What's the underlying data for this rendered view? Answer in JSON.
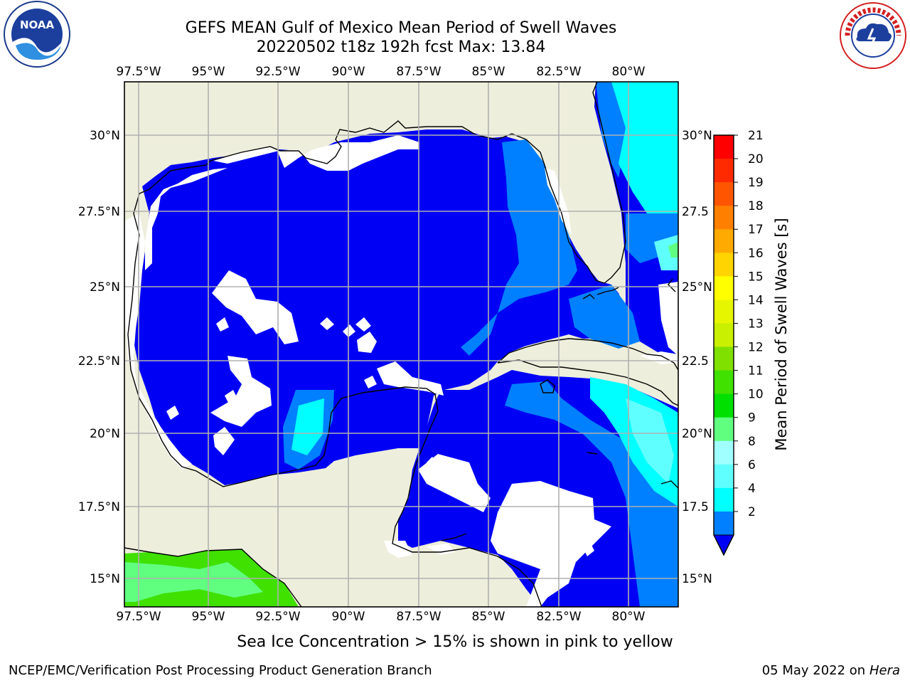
{
  "header": {
    "title_line1": "GEFS MEAN Gulf of Mexico Mean Period of Swell Waves",
    "title_line2": "20220502 t18z 192h fcst   Max: 13.84"
  },
  "logos": {
    "left": "NOAA",
    "right": "NATIONAL WEATHER SERVICE"
  },
  "map": {
    "lon_labels": [
      "97.5°W",
      "95°W",
      "92.5°W",
      "90°W",
      "87.5°W",
      "85°W",
      "82.5°W",
      "80°W"
    ],
    "lat_labels_left": [
      "30°N",
      "27.5°N",
      "25°N",
      "22.5°N",
      "20°N",
      "17.5°N",
      "15°N"
    ],
    "lat_labels_right": [
      "30°N",
      "27.5",
      "25°N",
      "22.5",
      "20°N",
      "17.5",
      "15°N"
    ],
    "colors": {
      "land": "#eeeedc",
      "sea_2_4": "#0000f5",
      "sea_4_6": "#0080ff",
      "sea_6_8": "#00ffff",
      "sea_8_9": "#a0ffff",
      "sea_9_10": "#60ff80",
      "sea_10_11": "#00e000",
      "sea_11_12": "#40e000",
      "no_data": "#ffffff"
    }
  },
  "colorbar": {
    "label": "Mean Period of Swell Waves [s]",
    "ticks": [
      "21",
      "20",
      "19",
      "18",
      "17",
      "16",
      "15",
      "14",
      "13",
      "12",
      "11",
      "10",
      "9",
      "8",
      "6",
      "4",
      "2"
    ],
    "colors": [
      "#ff0000",
      "#ff2a00",
      "#ff5500",
      "#ff8000",
      "#ffaa00",
      "#ffd400",
      "#ffff00",
      "#e6f500",
      "#c8f000",
      "#80e000",
      "#40e000",
      "#00e000",
      "#60ff80",
      "#a0ffff",
      "#60ffff",
      "#00ffff",
      "#0080ff"
    ],
    "extend_color": "#0000f5"
  },
  "footer": {
    "note": "Sea Ice Concentration > 15% is shown in pink to yellow",
    "left": "NCEP/EMC/Verification Post Processing Product Generation Branch",
    "right_date": "05 May 2022 on",
    "right_machine": "Hera"
  }
}
